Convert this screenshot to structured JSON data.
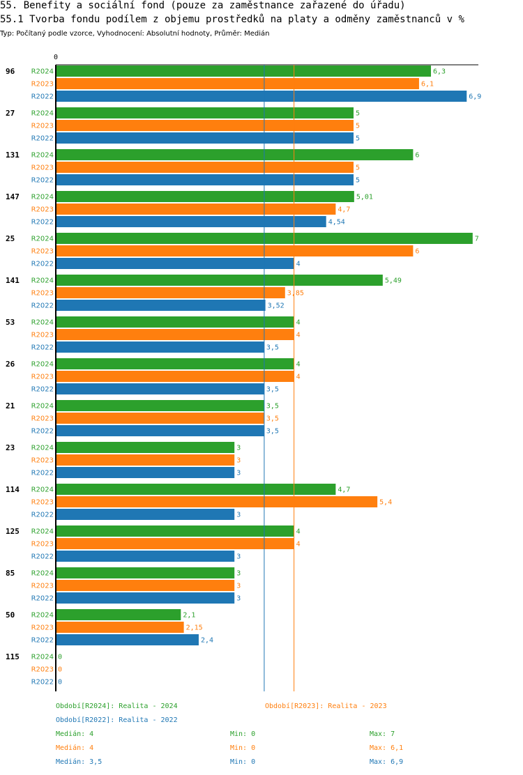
{
  "header": {
    "title": "55. Benefity a sociální fond (pouze za zaměstnance zařazené do úřadu)",
    "subtitle": "55.1 Tvorba fondu podílem z objemu prostředků na platy a odměny zaměstnanců v %",
    "meta": "Typ: Počítaný podle vzorce, Vyhodnocení: Absolutní hodnoty, Průměr: Medián"
  },
  "colors": {
    "R2024": "#2ca02c",
    "R2023": "#ff7f0e",
    "R2022": "#1f77b4"
  },
  "chart_data": {
    "type": "bar",
    "orientation": "horizontal",
    "axis_zero_label": "0",
    "xlim": [
      0,
      7.2
    ],
    "series_names": [
      "R2024",
      "R2023",
      "R2022"
    ],
    "groups": [
      {
        "label": "96",
        "values": [
          6.3,
          6.1,
          6.9
        ],
        "labels": [
          "6,3",
          "6,1",
          "6,9"
        ]
      },
      {
        "label": "27",
        "values": [
          5,
          5,
          5
        ],
        "labels": [
          "5",
          "5",
          "5"
        ]
      },
      {
        "label": "131",
        "values": [
          6,
          5,
          5
        ],
        "labels": [
          "6",
          "5",
          "5"
        ]
      },
      {
        "label": "147",
        "values": [
          5.01,
          4.7,
          4.54
        ],
        "labels": [
          "5,01",
          "4,7",
          "4,54"
        ]
      },
      {
        "label": "25",
        "values": [
          7,
          6,
          4
        ],
        "labels": [
          "7",
          "6",
          "4"
        ]
      },
      {
        "label": "141",
        "values": [
          5.49,
          3.85,
          3.52
        ],
        "labels": [
          "5,49",
          "3,85",
          "3,52"
        ]
      },
      {
        "label": "53",
        "values": [
          4,
          4,
          3.5
        ],
        "labels": [
          "4",
          "4",
          "3,5"
        ]
      },
      {
        "label": "26",
        "values": [
          4,
          4,
          3.5
        ],
        "labels": [
          "4",
          "4",
          "3,5"
        ]
      },
      {
        "label": "21",
        "values": [
          3.5,
          3.5,
          3.5
        ],
        "labels": [
          "3,5",
          "3,5",
          "3,5"
        ]
      },
      {
        "label": "23",
        "values": [
          3,
          3,
          3
        ],
        "labels": [
          "3",
          "3",
          "3"
        ]
      },
      {
        "label": "114",
        "values": [
          4.7,
          5.4,
          3
        ],
        "labels": [
          "4,7",
          "5,4",
          "3"
        ]
      },
      {
        "label": "125",
        "values": [
          4,
          4,
          3
        ],
        "labels": [
          "4",
          "4",
          "3"
        ]
      },
      {
        "label": "85",
        "values": [
          3,
          3,
          3
        ],
        "labels": [
          "3",
          "3",
          "3"
        ]
      },
      {
        "label": "50",
        "values": [
          2.1,
          2.15,
          2.4
        ],
        "labels": [
          "2,1",
          "2,15",
          "2,4"
        ]
      },
      {
        "label": "115",
        "values": [
          0,
          0,
          0
        ],
        "labels": [
          "0",
          "0",
          "0"
        ]
      }
    ],
    "median_lines": [
      {
        "series": "R2022",
        "value": 3.5
      },
      {
        "series": "R2023",
        "value": 4
      }
    ]
  },
  "legend": {
    "periods": [
      {
        "text": "Období[R2024]: Realita - 2024",
        "color": "#2ca02c"
      },
      {
        "text": "Období[R2023]: Realita - 2023",
        "color": "#ff7f0e"
      },
      {
        "text": "Období[R2022]: Realita - 2022",
        "color": "#1f77b4"
      }
    ],
    "stats": [
      {
        "median": "Medián: 4",
        "min": "Min: 0",
        "max": "Max: 7",
        "color": "#2ca02c"
      },
      {
        "median": "Medián: 4",
        "min": "Min: 0",
        "max": "Max: 6,1",
        "color": "#ff7f0e"
      },
      {
        "median": "Medián: 3,5",
        "min": "Min: 0",
        "max": "Max: 6,9",
        "color": "#1f77b4"
      }
    ]
  }
}
